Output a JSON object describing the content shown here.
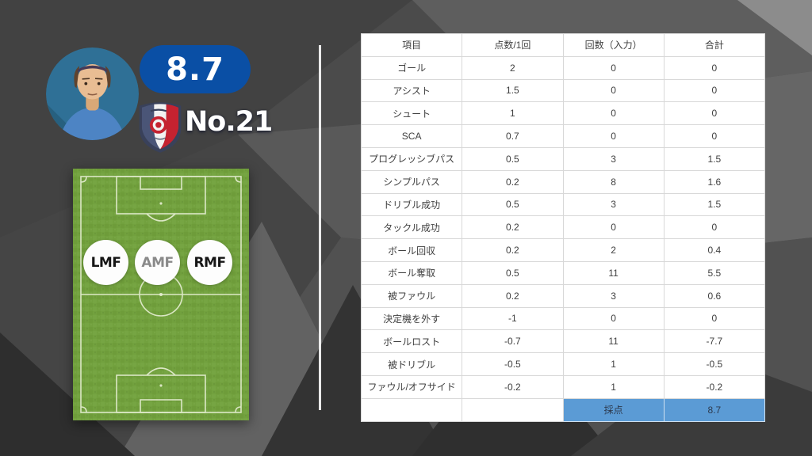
{
  "player": {
    "rating": "8.7",
    "number": "No.21",
    "positions": [
      {
        "label": "LMF",
        "color": "#161616"
      },
      {
        "label": "AMF",
        "color": "#8a8a8a"
      },
      {
        "label": "RMF",
        "color": "#161616"
      }
    ]
  },
  "table": {
    "headers": [
      "項目",
      "点数/1回",
      "回数（入力）",
      "合計"
    ],
    "rows": [
      [
        "ゴール",
        "2",
        "0",
        "0"
      ],
      [
        "アシスト",
        "1.5",
        "0",
        "0"
      ],
      [
        "シュート",
        "1",
        "0",
        "0"
      ],
      [
        "SCA",
        "0.7",
        "0",
        "0"
      ],
      [
        "プログレッシブパス",
        "0.5",
        "3",
        "1.5"
      ],
      [
        "シンプルパス",
        "0.2",
        "8",
        "1.6"
      ],
      [
        "ドリブル成功",
        "0.5",
        "3",
        "1.5"
      ],
      [
        "タックル成功",
        "0.2",
        "0",
        "0"
      ],
      [
        "ボール回収",
        "0.2",
        "2",
        "0.4"
      ],
      [
        "ボール奪取",
        "0.5",
        "11",
        "5.5"
      ],
      [
        "被ファウル",
        "0.2",
        "3",
        "0.6"
      ],
      [
        "決定機を外す",
        "-1",
        "0",
        "0"
      ],
      [
        "ボールロスト",
        "-0.7",
        "11",
        "-7.7"
      ],
      [
        "被ドリブル",
        "-0.5",
        "1",
        "-0.5"
      ],
      [
        "ファウル/オフサイド",
        "-0.2",
        "1",
        "-0.2"
      ]
    ],
    "footer": {
      "label": "採点",
      "value": "8.7"
    }
  },
  "colors": {
    "rating_pill_blue": "#0a4fa5",
    "score_row_blue": "#5b9bd5",
    "pitch_green": "#72a13e",
    "background_gray": "#4b4b4b"
  }
}
